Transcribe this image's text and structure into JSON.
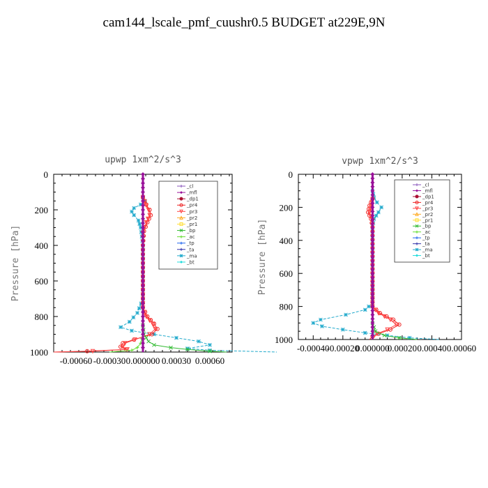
{
  "figure": {
    "title": "cam144_lscale_pmf_cuushr0.5  BUDGET at229E,9N"
  },
  "legend_entries": [
    {
      "name": "_cl",
      "color": "#8855bb",
      "marker": "plus"
    },
    {
      "name": "_mfl",
      "color": "#991199",
      "marker": "diamond"
    },
    {
      "name": "_dp1",
      "color": "#aa1133",
      "marker": "circle"
    },
    {
      "name": "_pr4",
      "color": "#ee2222",
      "marker": "circle-open"
    },
    {
      "name": "_pr3",
      "color": "#ff4444",
      "marker": "triangle-down"
    },
    {
      "name": "_pr2",
      "color": "#ffaa22",
      "marker": "triangle-up"
    },
    {
      "name": "_pr1",
      "color": "#ffdd33",
      "marker": "square"
    },
    {
      "name": "_bp",
      "color": "#33bb33",
      "marker": "x"
    },
    {
      "name": "_ac",
      "color": "#66dd33",
      "marker": "cross"
    },
    {
      "name": "_tp",
      "color": "#2266ee",
      "marker": "plus"
    },
    {
      "name": "_ta",
      "color": "#3333aa",
      "marker": "plus"
    },
    {
      "name": "_ma",
      "color": "#22aacc",
      "marker": "star"
    },
    {
      "name": "_bt",
      "color": "#22dddd",
      "marker": "diamond"
    }
  ],
  "chart_data": [
    {
      "type": "line",
      "title": "upwp   1xm^2/s^3",
      "ylabel": "Pressure [hPa]",
      "xlabel": "",
      "xlim": [
        -0.0008,
        0.0008
      ],
      "ylim": [
        1000,
        0
      ],
      "x_ticks": [
        -0.0006,
        -0.0003,
        0.0,
        0.0003,
        0.0006
      ],
      "x_tick_labels": [
        "-0.00060",
        "-0.00030",
        "0.000000",
        "0.00030",
        "0.00060"
      ],
      "y_ticks": [
        0,
        200,
        400,
        600,
        800,
        1000
      ],
      "y_tick_labels": [
        "0",
        "200",
        "400",
        "600",
        "800",
        "1000"
      ],
      "legend_position": "top-right",
      "series": [
        {
          "name": "_ma",
          "points": [
            [
              0.0,
              130
            ],
            [
              2e-05,
              150
            ],
            [
              -2e-05,
              170
            ],
            [
              -8e-05,
              190
            ],
            [
              -0.0001,
              210
            ],
            [
              -8e-05,
              230
            ],
            [
              -4e-05,
              260
            ],
            [
              -2e-05,
              300
            ],
            [
              -1e-05,
              350
            ],
            [
              0.0,
              400
            ],
            [
              0.0,
              500
            ],
            [
              0.0,
              600
            ],
            [
              0.0,
              700
            ],
            [
              -5e-05,
              780
            ],
            [
              -0.00012,
              830
            ],
            [
              -0.0002,
              860
            ],
            [
              -0.0001,
              880
            ],
            [
              0.0001,
              900
            ],
            [
              0.0003,
              920
            ],
            [
              0.0005,
              940
            ],
            [
              0.0006,
              960
            ],
            [
              0.0004,
              980
            ],
            [
              0.0006,
              990
            ],
            [
              0.0012,
              1000
            ]
          ]
        },
        {
          "name": "_pr4",
          "points": [
            [
              0.0,
              130
            ],
            [
              3e-05,
              170
            ],
            [
              6e-05,
              200
            ],
            [
              7e-05,
              230
            ],
            [
              4e-05,
              270
            ],
            [
              1e-05,
              320
            ],
            [
              0.0,
              400
            ],
            [
              0.0,
              600
            ],
            [
              0.0,
              750
            ],
            [
              4e-05,
              800
            ],
            [
              0.0001,
              840
            ],
            [
              0.00013,
              870
            ],
            [
              8e-05,
              900
            ],
            [
              -8e-05,
              930
            ],
            [
              -0.00018,
              950
            ],
            [
              -0.0002,
              970
            ],
            [
              -0.00015,
              985
            ],
            [
              -0.0005,
              995
            ],
            [
              -0.0008,
              1000
            ]
          ]
        },
        {
          "name": "_pr3",
          "points": [
            [
              0.0,
              130
            ],
            [
              3e-05,
              175
            ],
            [
              5e-05,
              200
            ],
            [
              6e-05,
              230
            ],
            [
              3e-05,
              270
            ],
            [
              0.0,
              330
            ],
            [
              0.0,
              750
            ],
            [
              3e-05,
              800
            ],
            [
              9e-05,
              845
            ],
            [
              0.00011,
              870
            ],
            [
              6e-05,
              900
            ],
            [
              -7e-05,
              930
            ],
            [
              -0.00016,
              950
            ],
            [
              -0.00018,
              970
            ],
            [
              -0.00014,
              985
            ],
            [
              -0.00045,
              995
            ],
            [
              -0.0008,
              1000
            ]
          ]
        },
        {
          "name": "_bp",
          "points": [
            [
              0.0,
              850
            ],
            [
              1e-05,
              900
            ],
            [
              5e-05,
              940
            ],
            [
              0.0001,
              960
            ],
            [
              0.00025,
              975
            ],
            [
              0.0004,
              985
            ],
            [
              0.0006,
              995
            ],
            [
              0.00075,
              1000
            ]
          ]
        },
        {
          "name": "_ac",
          "points": [
            [
              0.0,
              900
            ],
            [
              -2e-05,
              950
            ],
            [
              -5e-05,
              975
            ],
            [
              -0.0001,
              990
            ],
            [
              -0.0003,
              1000
            ]
          ]
        },
        {
          "name": "_mfl",
          "points": [
            [
              0.0,
              0
            ],
            [
              0.0,
              1000
            ]
          ]
        }
      ]
    },
    {
      "type": "line",
      "title": "vpwp   1xm^2/s^3",
      "ylabel": "Pressure [hPa]",
      "xlabel": "",
      "xlim": [
        -0.0005,
        0.0006
      ],
      "ylim": [
        1000,
        0
      ],
      "x_ticks": [
        -0.0004,
        -0.0002,
        0.0,
        0.0002,
        0.0004,
        0.0006
      ],
      "x_tick_labels": [
        "-0.00040",
        "-0.00020",
        "0.000000",
        "0.00020",
        "0.00040",
        "0.00060"
      ],
      "y_ticks": [
        0,
        200,
        400,
        600,
        800,
        1000
      ],
      "y_tick_labels": [
        "0",
        "200",
        "400",
        "600",
        "800",
        "1000"
      ],
      "legend_position": "top-right",
      "series": [
        {
          "name": "_ma",
          "points": [
            [
              0.0,
              100
            ],
            [
              1e-05,
              140
            ],
            [
              3e-05,
              170
            ],
            [
              6e-05,
              200
            ],
            [
              4e-05,
              230
            ],
            [
              1e-05,
              270
            ],
            [
              0.0,
              320
            ],
            [
              0.0,
              600
            ],
            [
              0.0,
              780
            ],
            [
              -5e-05,
              820
            ],
            [
              -0.00018,
              850
            ],
            [
              -0.00035,
              880
            ],
            [
              -0.0004,
              900
            ],
            [
              -0.00034,
              920
            ],
            [
              -0.0002,
              940
            ],
            [
              -5e-05,
              960
            ],
            [
              0.0001,
              975
            ],
            [
              0.00025,
              990
            ],
            [
              0.00045,
              1000
            ]
          ]
        },
        {
          "name": "_pr4",
          "points": [
            [
              0.0,
              150
            ],
            [
              -2e-05,
              190
            ],
            [
              -3e-05,
              230
            ],
            [
              -1e-05,
              270
            ],
            [
              0.0,
              320
            ],
            [
              0.0,
              800
            ],
            [
              5e-05,
              840
            ],
            [
              0.00014,
              880
            ],
            [
              0.00018,
              910
            ],
            [
              0.00012,
              940
            ],
            [
              4e-05,
              965
            ],
            [
              0.0,
              980
            ],
            [
              -2e-05,
              1000
            ]
          ]
        },
        {
          "name": "_pr3",
          "points": [
            [
              0.0,
              150
            ],
            [
              -1e-05,
              190
            ],
            [
              -2e-05,
              230
            ],
            [
              0.0,
              280
            ],
            [
              0.0,
              800
            ],
            [
              4e-05,
              840
            ],
            [
              0.00012,
              880
            ],
            [
              0.00016,
              910
            ],
            [
              0.0001,
              940
            ],
            [
              3e-05,
              965
            ],
            [
              0.0,
              1000
            ]
          ]
        },
        {
          "name": "_bp",
          "points": [
            [
              0.0,
              900
            ],
            [
              2e-05,
              950
            ],
            [
              8e-05,
              975
            ],
            [
              0.00018,
              990
            ],
            [
              0.0003,
              1000
            ]
          ]
        },
        {
          "name": "_mfl",
          "points": [
            [
              0.0,
              0
            ],
            [
              0.0,
              1000
            ]
          ]
        }
      ]
    }
  ]
}
